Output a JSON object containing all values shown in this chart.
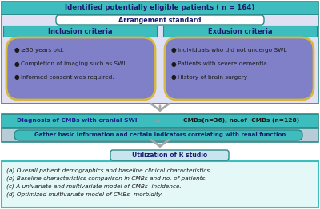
{
  "bg_color": "#ffffff",
  "top_box": {
    "text": "Identified potentially eligible patients ( n = 164)",
    "bg": "#3dbdbd",
    "fg": "#1a1a6e",
    "border": "#2a8888"
  },
  "arrangement_box": {
    "text": "Arrangement standard",
    "bg": "#ffffff",
    "fg": "#1a1a6e",
    "border": "#2a8888"
  },
  "criteria_header_bg": "#3dbdbd",
  "criteria_header_fg": "#1a1a6e",
  "criteria_border": "#2a8888",
  "inclusion_header": "Inclusion criteria",
  "exclusion_header": "Exdusion criteria",
  "inclusion_items": [
    "≥30 years old.",
    "Completion of imaging such as SWL.",
    "Informed consent was required."
  ],
  "exclusion_items": [
    "Individuals who did not undergo SWL",
    "Patients with severe dementia .",
    "History of brain surgery ."
  ],
  "criteria_box_bg": "#8080c8",
  "criteria_box_border": "#d4b840",
  "outer_criteria_bg": "#e0e0f4",
  "outer_criteria_border": "#2a8888",
  "diagnosis_box": {
    "text_left": "Diagnosis of CMBs with cranial SWI",
    "text_right": "CMBs(n=36), no.of- CMBs (n=128)",
    "bg": "#3dbdbd",
    "fg_left": "#1a2090",
    "fg_right": "#1a1a1a",
    "border": "#2a8888"
  },
  "gather_row_bg": "#b8ccd8",
  "gather_box": {
    "text": "Gather basic information and certain indicators correlating with renal function",
    "ellipse_bg": "#3dbdbd",
    "fg": "#1a1a6e",
    "border": "#2a8888"
  },
  "r_studio_box": {
    "text": "Utilization of R studio",
    "bg": "#c8e4ec",
    "fg": "#1a1a6e",
    "border": "#2a8888"
  },
  "output_box": {
    "items": [
      "(a) Overall patient demographics and baseline clinical characteristics.",
      "(b) Baseline characteristics comparison in CMBs and no. of patients.",
      "(c) A univariate and multivariate model of CMBs  incidence.",
      "(d) Optimized multivariate model of CMBs  morbidity."
    ],
    "bg": "#e4f8f8",
    "fg": "#1a1a1a",
    "border": "#3dbdbd"
  },
  "arrow_color": "#a8a8a8",
  "sep_arrow_color": "#c09090"
}
